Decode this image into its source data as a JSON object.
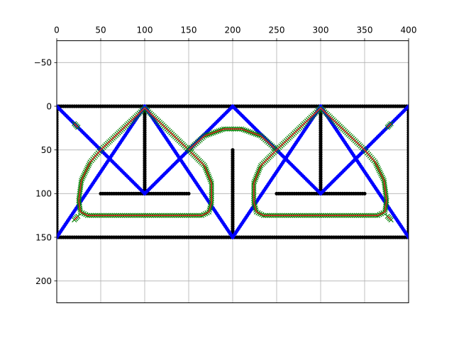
{
  "chart_data": {
    "type": "scatter",
    "title": "",
    "xlabel": "",
    "ylabel": "",
    "xlim": [
      0,
      400
    ],
    "ylim": [
      -75,
      225
    ],
    "y_inverted": true,
    "x_axis_position": "top",
    "grid": true,
    "x_ticks": [
      0,
      50,
      100,
      150,
      200,
      250,
      300,
      350,
      400
    ],
    "x_tick_labels": [
      "0",
      "50",
      "100",
      "150",
      "200",
      "250",
      "300",
      "350",
      "400"
    ],
    "y_ticks": [
      -50,
      0,
      50,
      100,
      150,
      200
    ],
    "y_tick_labels": [
      "−50",
      "0",
      "50",
      "100",
      "150",
      "200"
    ],
    "colors": {
      "black_points": "#000000",
      "blue_points": "#0000ff",
      "red_line": "#d62728",
      "green_markers": "#008000",
      "grid": "#b0b0b0"
    },
    "series": [
      {
        "style": "black-points",
        "segments": [
          [
            [
              0,
              0
            ],
            [
              400,
              0
            ]
          ],
          [
            [
              0,
              150
            ],
            [
              400,
              150
            ]
          ],
          [
            [
              0,
              0
            ],
            [
              0,
              150
            ]
          ],
          [
            [
              400,
              0
            ],
            [
              400,
              150
            ]
          ],
          [
            [
              100,
              0
            ],
            [
              100,
              100
            ]
          ],
          [
            [
              300,
              0
            ],
            [
              300,
              100
            ]
          ],
          [
            [
              200,
              50
            ],
            [
              200,
              150
            ]
          ],
          [
            [
              50,
              100
            ],
            [
              150,
              100
            ]
          ],
          [
            [
              250,
              100
            ],
            [
              350,
              100
            ]
          ]
        ]
      },
      {
        "style": "blue-points",
        "segments": [
          [
            [
              0,
              0
            ],
            [
              100,
              100
            ]
          ],
          [
            [
              100,
              100
            ],
            [
              200,
              0
            ]
          ],
          [
            [
              0,
              150
            ],
            [
              100,
              0
            ]
          ],
          [
            [
              100,
              0
            ],
            [
              200,
              150
            ]
          ],
          [
            [
              200,
              150
            ],
            [
              300,
              0
            ]
          ],
          [
            [
              300,
              0
            ],
            [
              400,
              150
            ]
          ],
          [
            [
              200,
              0
            ],
            [
              300,
              100
            ]
          ],
          [
            [
              300,
              100
            ],
            [
              400,
              0
            ]
          ]
        ],
        "clip_x": [
          0,
          400
        ]
      },
      {
        "style": "red-line-green-x",
        "paths": [
          [
            [
              25,
              108
            ],
            [
              28,
              85
            ],
            [
              38,
              64
            ],
            [
              50,
              50
            ],
            [
              78,
              23
            ],
            [
              100,
              2
            ],
            [
              122,
              23
            ],
            [
              150,
              50
            ],
            [
              168,
              68
            ],
            [
              176,
              88
            ],
            [
              176,
              110
            ],
            [
              173,
              121
            ],
            [
              165,
              125
            ],
            [
              35,
              125
            ],
            [
              27,
              121
            ],
            [
              25,
              108
            ]
          ],
          [
            [
              150,
              50
            ],
            [
              168,
              34
            ],
            [
              190,
              26
            ],
            [
              210,
              26
            ],
            [
              232,
              34
            ],
            [
              250,
              50
            ]
          ],
          [
            [
              375,
              108
            ],
            [
              372,
              85
            ],
            [
              362,
              64
            ],
            [
              350,
              50
            ],
            [
              322,
              23
            ],
            [
              300,
              2
            ],
            [
              278,
              23
            ],
            [
              250,
              50
            ],
            [
              232,
              68
            ],
            [
              224,
              88
            ],
            [
              224,
              110
            ],
            [
              227,
              121
            ],
            [
              235,
              125
            ],
            [
              365,
              125
            ],
            [
              373,
              121
            ],
            [
              375,
              108
            ]
          ],
          [
            [
              20,
              20
            ],
            [
              24,
              24
            ]
          ],
          [
            [
              20,
              130
            ],
            [
              24,
              126
            ]
          ],
          [
            [
              376,
              24
            ],
            [
              380,
              20
            ]
          ],
          [
            [
              376,
              126
            ],
            [
              380,
              130
            ]
          ]
        ]
      }
    ]
  }
}
